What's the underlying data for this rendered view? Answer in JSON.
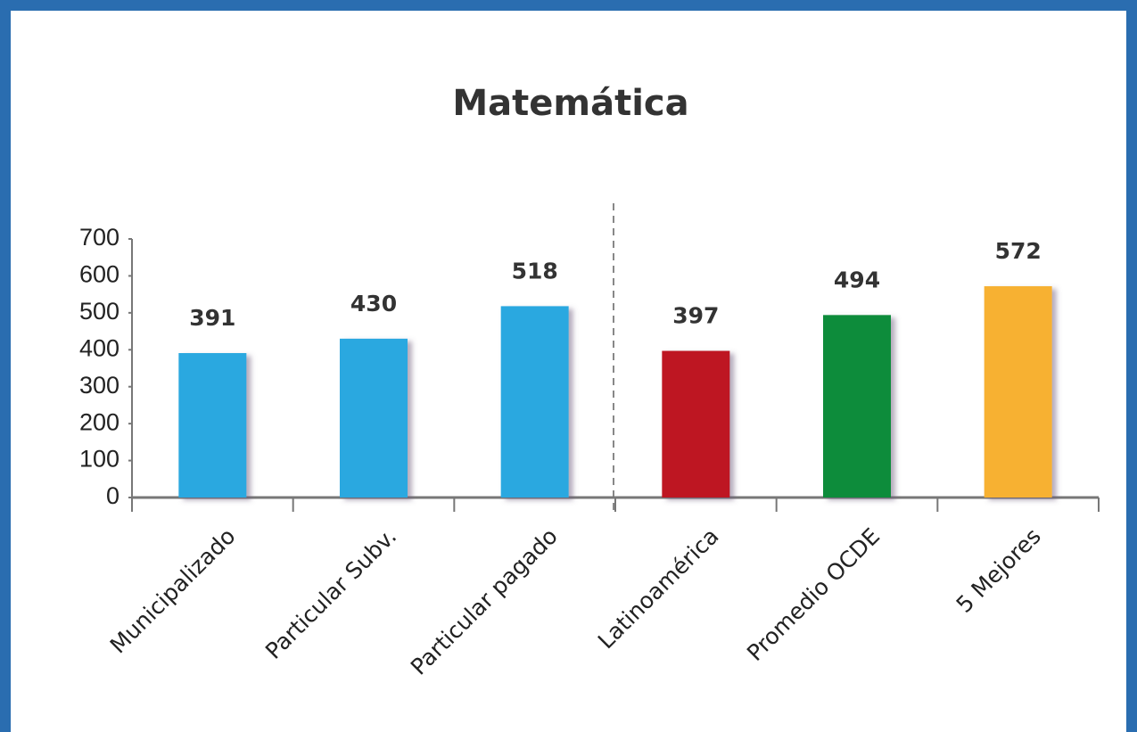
{
  "chart_data": {
    "type": "bar",
    "title": "Matemática",
    "categories": [
      "Municipalizado",
      "Particular Subv.",
      "Particular pagado",
      "Latinoamérica",
      "Promedio OCDE",
      "5 Mejores"
    ],
    "values": [
      391,
      430,
      518,
      397,
      494,
      572
    ],
    "colors": [
      "#29a8e0",
      "#29a8e0",
      "#29a8e0",
      "#be1622",
      "#0b8c3a",
      "#f7b133"
    ],
    "ylim": [
      0,
      700
    ],
    "yticks": [
      0,
      100,
      200,
      300,
      400,
      500,
      600,
      700
    ],
    "grid": false
  }
}
